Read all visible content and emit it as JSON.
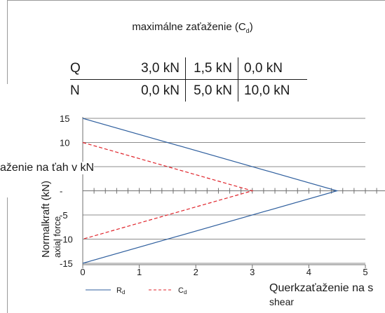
{
  "heading": {
    "text": "maximálne zaťaženie (C",
    "sub": "d",
    "close": ")"
  },
  "load_table": {
    "rows": [
      {
        "label": "Q",
        "values": [
          "3,0 kN",
          "1,5 kN",
          "0,0 kN"
        ]
      },
      {
        "label": "N",
        "values": [
          "0,0 kN",
          "5,0 kN",
          "10,0 kN"
        ]
      }
    ]
  },
  "labels": {
    "tension": "aženie na ťah v kN",
    "y_main": "Normalkraft (kN)",
    "y_sub": "axial force",
    "x_main": "Querkzaťaženie na s",
    "x_sub": "shear"
  },
  "legend": [
    {
      "name": "R",
      "sub": "d",
      "color": "#2f5f9e",
      "style": "solid"
    },
    {
      "name": "C",
      "sub": "d",
      "color": "#e0242b",
      "style": "dashed"
    }
  ],
  "chart_data": {
    "type": "line",
    "xlim": [
      0,
      5
    ],
    "ylim": [
      -15,
      15
    ],
    "x_ticks": [
      "0",
      "1",
      "2",
      "3",
      "4",
      "5"
    ],
    "y_ticks": [
      "15",
      "10",
      "-",
      "-5",
      "-10",
      "-15"
    ],
    "grid": true,
    "series": [
      {
        "name": "Rd",
        "color": "#2f5f9e",
        "dash": false,
        "x": [
          0,
          4.5,
          0
        ],
        "y": [
          15,
          0,
          -15
        ]
      },
      {
        "name": "Cd",
        "color": "#e0242b",
        "dash": true,
        "x": [
          0,
          3,
          0
        ],
        "y": [
          10,
          0,
          -10
        ]
      }
    ]
  }
}
